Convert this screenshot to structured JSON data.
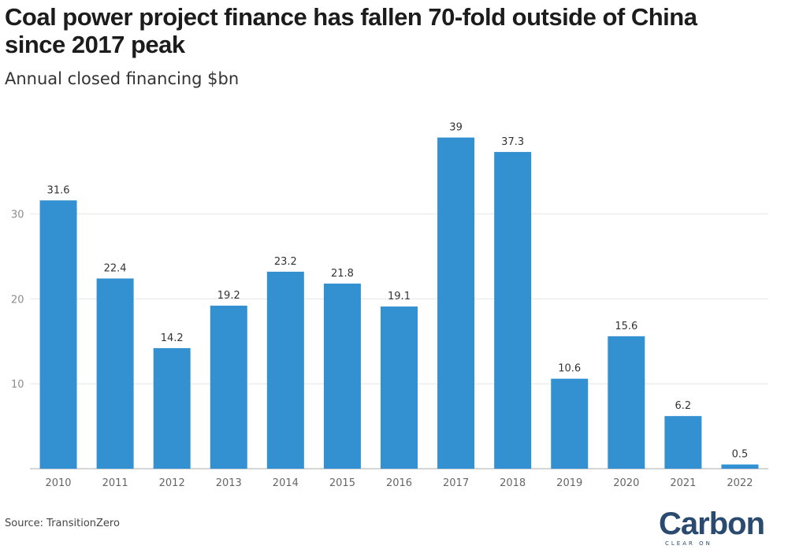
{
  "title": "Coal power project finance has fallen 70-fold outside of China since 2017 peak",
  "subtitle": "Annual closed financing $bn",
  "source": "Source: TransitionZero",
  "logo": {
    "text": "Carbon",
    "tagline": "CLEAR ON"
  },
  "colors": {
    "bar": "#3391d1",
    "grid": "#e6e6e6",
    "axis": "#bdbdbd",
    "tick": "#8c8c8c",
    "label": "#333333"
  },
  "chart_data": {
    "type": "bar",
    "categories": [
      "2010",
      "2011",
      "2012",
      "2013",
      "2014",
      "2015",
      "2016",
      "2017",
      "2018",
      "2019",
      "2020",
      "2021",
      "2022"
    ],
    "values": [
      31.6,
      22.4,
      14.2,
      19.2,
      23.2,
      21.8,
      19.1,
      39,
      37.3,
      10.6,
      15.6,
      6.2,
      0.5
    ],
    "data_labels": [
      "31.6",
      "22.4",
      "14.2",
      "19.2",
      "23.2",
      "21.8",
      "19.1",
      "39",
      "37.3",
      "10.6",
      "15.6",
      "6.2",
      "0.5"
    ],
    "yticks": [
      10,
      20,
      30
    ],
    "ylim": [
      0,
      40
    ],
    "grid": true,
    "legend": "none"
  }
}
